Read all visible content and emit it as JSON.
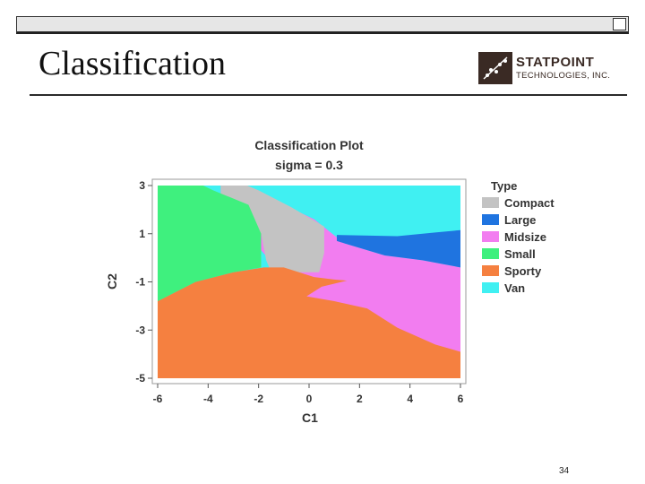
{
  "slide": {
    "title": "Classification",
    "page_number": "34",
    "logo_line1": "STATPOINT",
    "logo_line2": "TECHNOLOGIES, INC."
  },
  "colors": {
    "Compact": "#c3c3c3",
    "Large": "#1f74e0",
    "Midsize": "#f27df0",
    "Small": "#3ff07e",
    "Sporty": "#f58040",
    "Van": "#40f0f2"
  },
  "chart_data": {
    "type": "heatmap",
    "title": "Classification Plot",
    "subtitle": "sigma = 0.3",
    "xlabel": "C1",
    "ylabel": "C2",
    "xlim": [
      -6,
      6
    ],
    "ylim": [
      -5,
      3
    ],
    "xticks": [
      -6,
      -4,
      -2,
      0,
      2,
      4,
      6
    ],
    "yticks": [
      3,
      1,
      -1,
      -3,
      -5
    ],
    "legend": {
      "title": "Type",
      "position": "right",
      "entries": [
        "Compact",
        "Large",
        "Midsize",
        "Small",
        "Sporty",
        "Van"
      ]
    },
    "regions": [
      {
        "class": "Van",
        "polygon": [
          [
            -6,
            3.2
          ],
          [
            6,
            3.2
          ],
          [
            6,
            -5.2
          ],
          [
            -6,
            -5.2
          ]
        ]
      },
      {
        "class": "Midsize",
        "polygon": [
          [
            -3.5,
            3.2
          ],
          [
            -2.4,
            2.85
          ],
          [
            -1.2,
            2.3
          ],
          [
            0.2,
            1.6
          ],
          [
            1.4,
            0.6
          ],
          [
            3,
            0.1
          ],
          [
            4.5,
            -0.1
          ],
          [
            6,
            -0.4
          ],
          [
            6,
            -5.2
          ],
          [
            -1,
            -5.2
          ],
          [
            -1.3,
            -0.4
          ],
          [
            -3.5,
            2.2
          ]
        ]
      },
      {
        "class": "Large",
        "polygon": [
          [
            1.1,
            0.95
          ],
          [
            3.5,
            0.9
          ],
          [
            5,
            1.05
          ],
          [
            6,
            1.15
          ],
          [
            6,
            -0.4
          ],
          [
            4.5,
            -0.1
          ],
          [
            3,
            0.1
          ],
          [
            1.4,
            0.6
          ],
          [
            1.1,
            0.7
          ]
        ]
      },
      {
        "class": "Compact",
        "polygon": [
          [
            -3.5,
            3.2
          ],
          [
            -2.9,
            3.2
          ],
          [
            -2,
            2.8
          ],
          [
            -0.7,
            2.1
          ],
          [
            0.6,
            1.3
          ],
          [
            0.6,
            0.2
          ],
          [
            0.4,
            -0.6
          ],
          [
            -1.5,
            -0.6
          ],
          [
            -1.7,
            -0.1
          ],
          [
            -1.9,
            1.0
          ],
          [
            -3.5,
            2.2
          ]
        ]
      },
      {
        "class": "Sporty",
        "polygon": [
          [
            -6,
            -1.8
          ],
          [
            -4.5,
            -1.0
          ],
          [
            -3,
            -0.6
          ],
          [
            -1.8,
            -0.4
          ],
          [
            -1.0,
            -0.4
          ],
          [
            -0.4,
            -0.6
          ],
          [
            0.2,
            -0.8
          ],
          [
            1.0,
            -0.9
          ],
          [
            1.5,
            -0.95
          ],
          [
            0.5,
            -1.2
          ],
          [
            -0.1,
            -1.6
          ],
          [
            1.0,
            -1.8
          ],
          [
            2.3,
            -2.1
          ],
          [
            3.5,
            -2.9
          ],
          [
            5,
            -3.6
          ],
          [
            6,
            -3.9
          ],
          [
            6,
            -5.2
          ],
          [
            -6,
            -5.2
          ]
        ]
      },
      {
        "class": "Small",
        "polygon": [
          [
            -6,
            3.2
          ],
          [
            -4.6,
            3.2
          ],
          [
            -3.8,
            2.8
          ],
          [
            -2.4,
            2.2
          ],
          [
            -1.9,
            1.0
          ],
          [
            -1.9,
            -0.4
          ],
          [
            -3,
            -0.6
          ],
          [
            -4.5,
            -1.0
          ],
          [
            -6,
            -1.8
          ]
        ]
      }
    ]
  }
}
